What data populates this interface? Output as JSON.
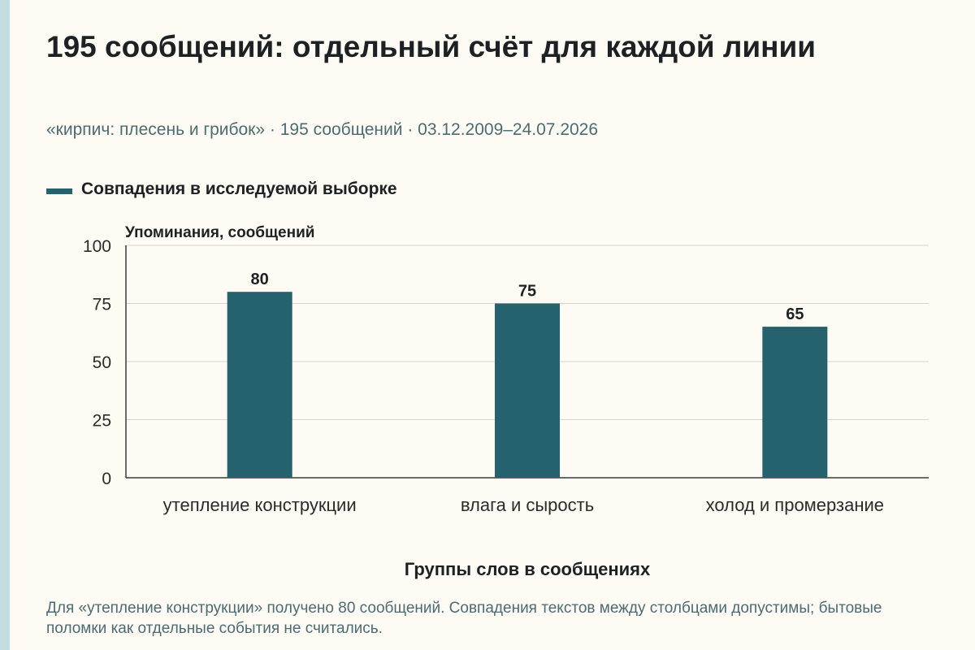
{
  "header": {
    "title": "195 сообщений: отдельный счёт для каждой линии",
    "subtitle": "«кирпич: плесень и грибок» · 195 сообщений · 03.12.2009–24.07.2026"
  },
  "legend": {
    "label": "Совпадения в исследуемой выборке"
  },
  "colors": {
    "bar": "#25626d",
    "grid": "#d4d4cc",
    "axis": "#3a3a3a",
    "background": "#fdfbf3",
    "edge_strip": "#c3dde0"
  },
  "chart_data": {
    "type": "bar",
    "categories": [
      "утепление конструкции",
      "влага и сырость",
      "холод и промерзание"
    ],
    "series": [
      {
        "name": "Совпадения в исследуемой выборке",
        "values": [
          80,
          75,
          65
        ]
      }
    ],
    "xlabel": "Группы слов в сообщениях",
    "ylabel": "Упоминания, сообщений",
    "ylim": [
      0,
      100
    ],
    "yticks": [
      0,
      25,
      50,
      75,
      100
    ],
    "grid": true,
    "legend_position": "top-left"
  },
  "footnote": "Для «утепление конструкции» получено 80 сообщений. Совпадения текстов между столбцами допустимы; бытовые поломки как отдельные события не считались."
}
